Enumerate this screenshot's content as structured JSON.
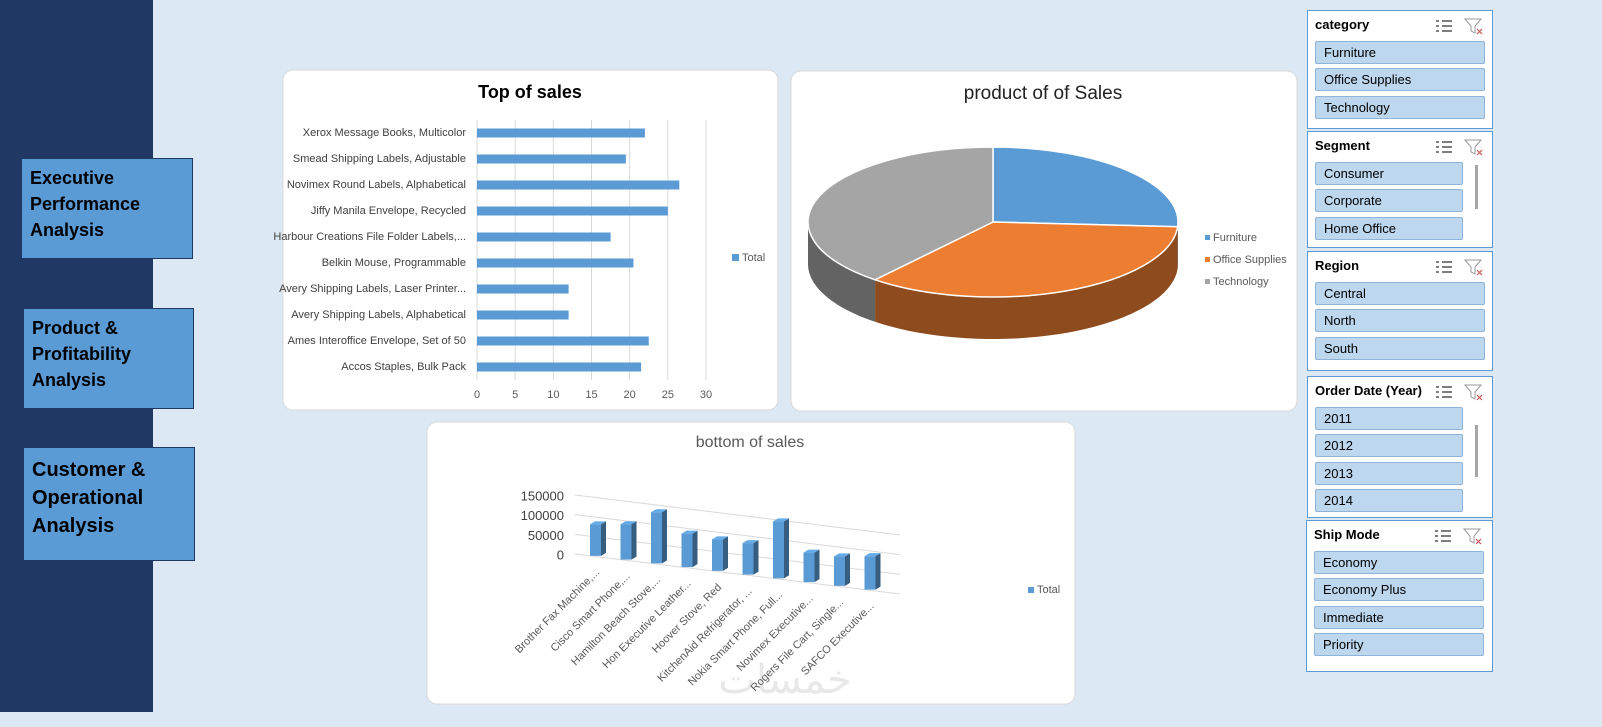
{
  "nav": [
    "Executive Performance Analysis",
    "Product & Profitability Analysis",
    "Customer & Operational Analysis"
  ],
  "chart_data": [
    {
      "type": "bar",
      "horizontal": true,
      "title": "Top of sales",
      "categories": [
        "Xerox Message Books, Multicolor",
        "Smead Shipping Labels, Adjustable",
        "Novimex Round Labels, Alphabetical",
        "Jiffy Manila Envelope, Recycled",
        "Harbour Creations File Folder Labels,...",
        "Belkin Mouse, Programmable",
        "Avery Shipping Labels, Laser Printer...",
        "Avery Shipping Labels, Alphabetical",
        "Ames Interoffice Envelope, Set of 50",
        "Accos Staples, Bulk Pack"
      ],
      "series": [
        {
          "name": "Total",
          "color": "#5b9bd5",
          "values": [
            22,
            19.5,
            26.5,
            25,
            17.5,
            20.5,
            12,
            12,
            22.5,
            21.5
          ]
        }
      ],
      "xlim": [
        0,
        30
      ],
      "xticks": [
        0,
        5,
        10,
        15,
        20,
        25,
        30
      ],
      "grid": true,
      "legend": "right"
    },
    {
      "type": "pie",
      "title": "product of  of Sales",
      "categories": [
        "Furniture",
        "Office Supplies",
        "Technology"
      ],
      "values": [
        26,
        35,
        39
      ],
      "colors": [
        "#5b9bd5",
        "#ed7d31",
        "#a5a5a5"
      ],
      "legend": "right"
    },
    {
      "type": "column",
      "title": "bottom of sales",
      "categories": [
        "Brother Fax Machine,...",
        "Cisco Smart Phone,...",
        "Hamilton Beach Stove,...",
        "Hon Executive Leather...",
        "Hoover Stove, Red",
        "KitchenAid Refrigerator, ...",
        "Nokia Smart Phone, Full...",
        "Novimex Executive...",
        "Rogers File Cart, Single...",
        "SAFCO Executive..."
      ],
      "series": [
        {
          "name": "Total",
          "color": "#5b9bd5",
          "values": [
            80000,
            90000,
            130000,
            85000,
            80000,
            80000,
            145000,
            75000,
            75000,
            85000
          ]
        }
      ],
      "ylim": [
        0,
        150000
      ],
      "yticks": [
        0,
        50000,
        100000,
        150000
      ],
      "grid": true,
      "legend": "right"
    }
  ],
  "slicers": [
    {
      "title": "category",
      "items": [
        "Furniture",
        "Office Supplies",
        "Technology"
      ]
    },
    {
      "title": "Segment",
      "items": [
        "Consumer",
        "Corporate",
        "Home Office"
      ]
    },
    {
      "title": "Region",
      "items": [
        "Central",
        "North",
        "South"
      ]
    },
    {
      "title": "Order Date (Year)",
      "items": [
        "2011",
        "2012",
        "2013",
        "2014"
      ]
    },
    {
      "title": "Ship Mode",
      "items": [
        "Economy",
        "Economy Plus",
        "Immediate",
        "Priority"
      ]
    }
  ],
  "watermark": "خمسات"
}
